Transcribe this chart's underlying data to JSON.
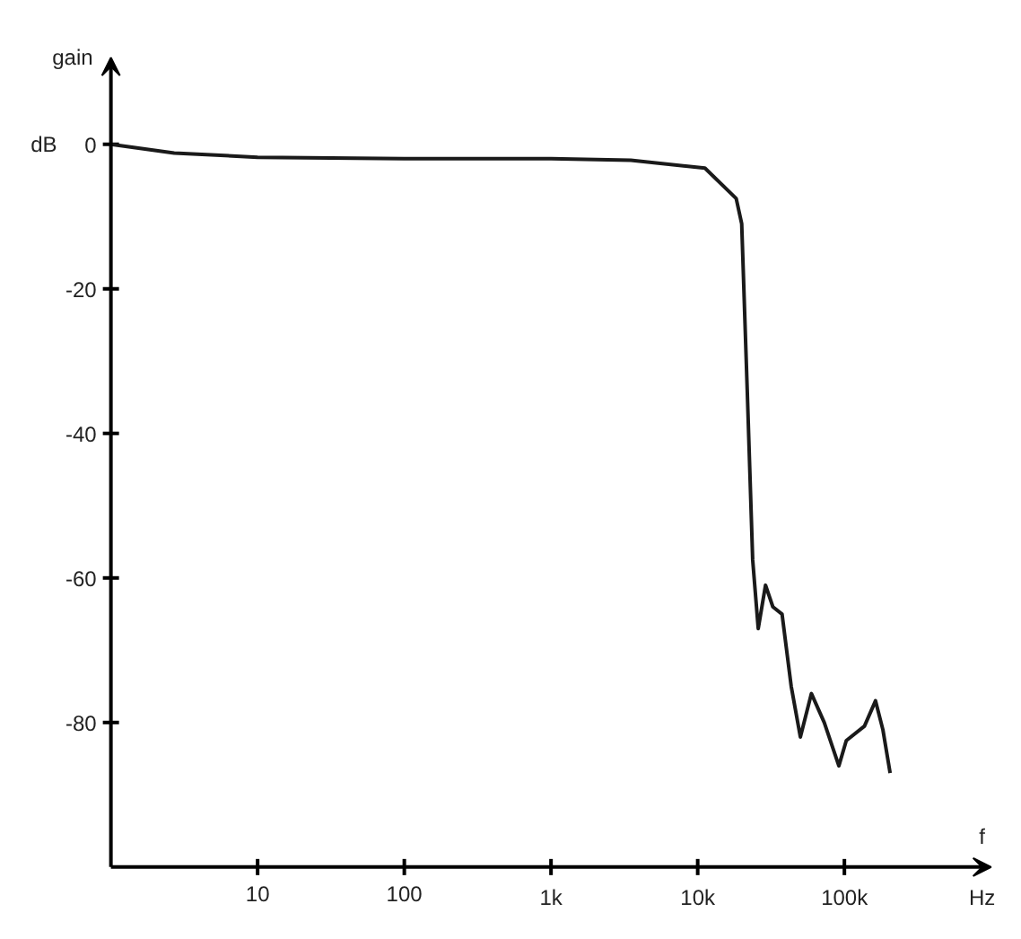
{
  "chart_data": {
    "type": "line",
    "xlabel": "f",
    "ylabel": "gain",
    "annotations": [
      "dB",
      "Hz"
    ],
    "log": "x",
    "grid": false,
    "marker": "none",
    "line_style": "solid",
    "xlim": [
      1,
      1000000
    ],
    "ylim": [
      -100,
      12
    ],
    "xticks": [
      {
        "value": 10,
        "label": "10"
      },
      {
        "value": 100,
        "label": "100"
      },
      {
        "value": 1000,
        "label": "1k"
      },
      {
        "value": 10000,
        "label": "10k"
      },
      {
        "value": 100000,
        "label": "100k"
      }
    ],
    "yticks": [
      0,
      -20,
      -40,
      -60,
      -80
    ],
    "series": [
      {
        "color": "#1a1a1a",
        "x": [
          1,
          2.7,
          10,
          100,
          1000,
          3500,
          11200,
          18300,
          19950,
          21760,
          23700,
          25860,
          29000,
          32540,
          37580,
          43400,
          50100,
          59600,
          72900,
          91700,
          103000,
          137000,
          163000,
          183000,
          205000
        ],
        "values": [
          0,
          -1.2,
          -1.8,
          -2,
          -2,
          -2.2,
          -3.3,
          -7.5,
          -11,
          -34,
          -57.5,
          -67,
          -61,
          -64,
          -65,
          -75,
          -82,
          -76,
          -80,
          -86,
          -82.5,
          -80.5,
          -77,
          -81,
          -87
        ]
      }
    ]
  }
}
